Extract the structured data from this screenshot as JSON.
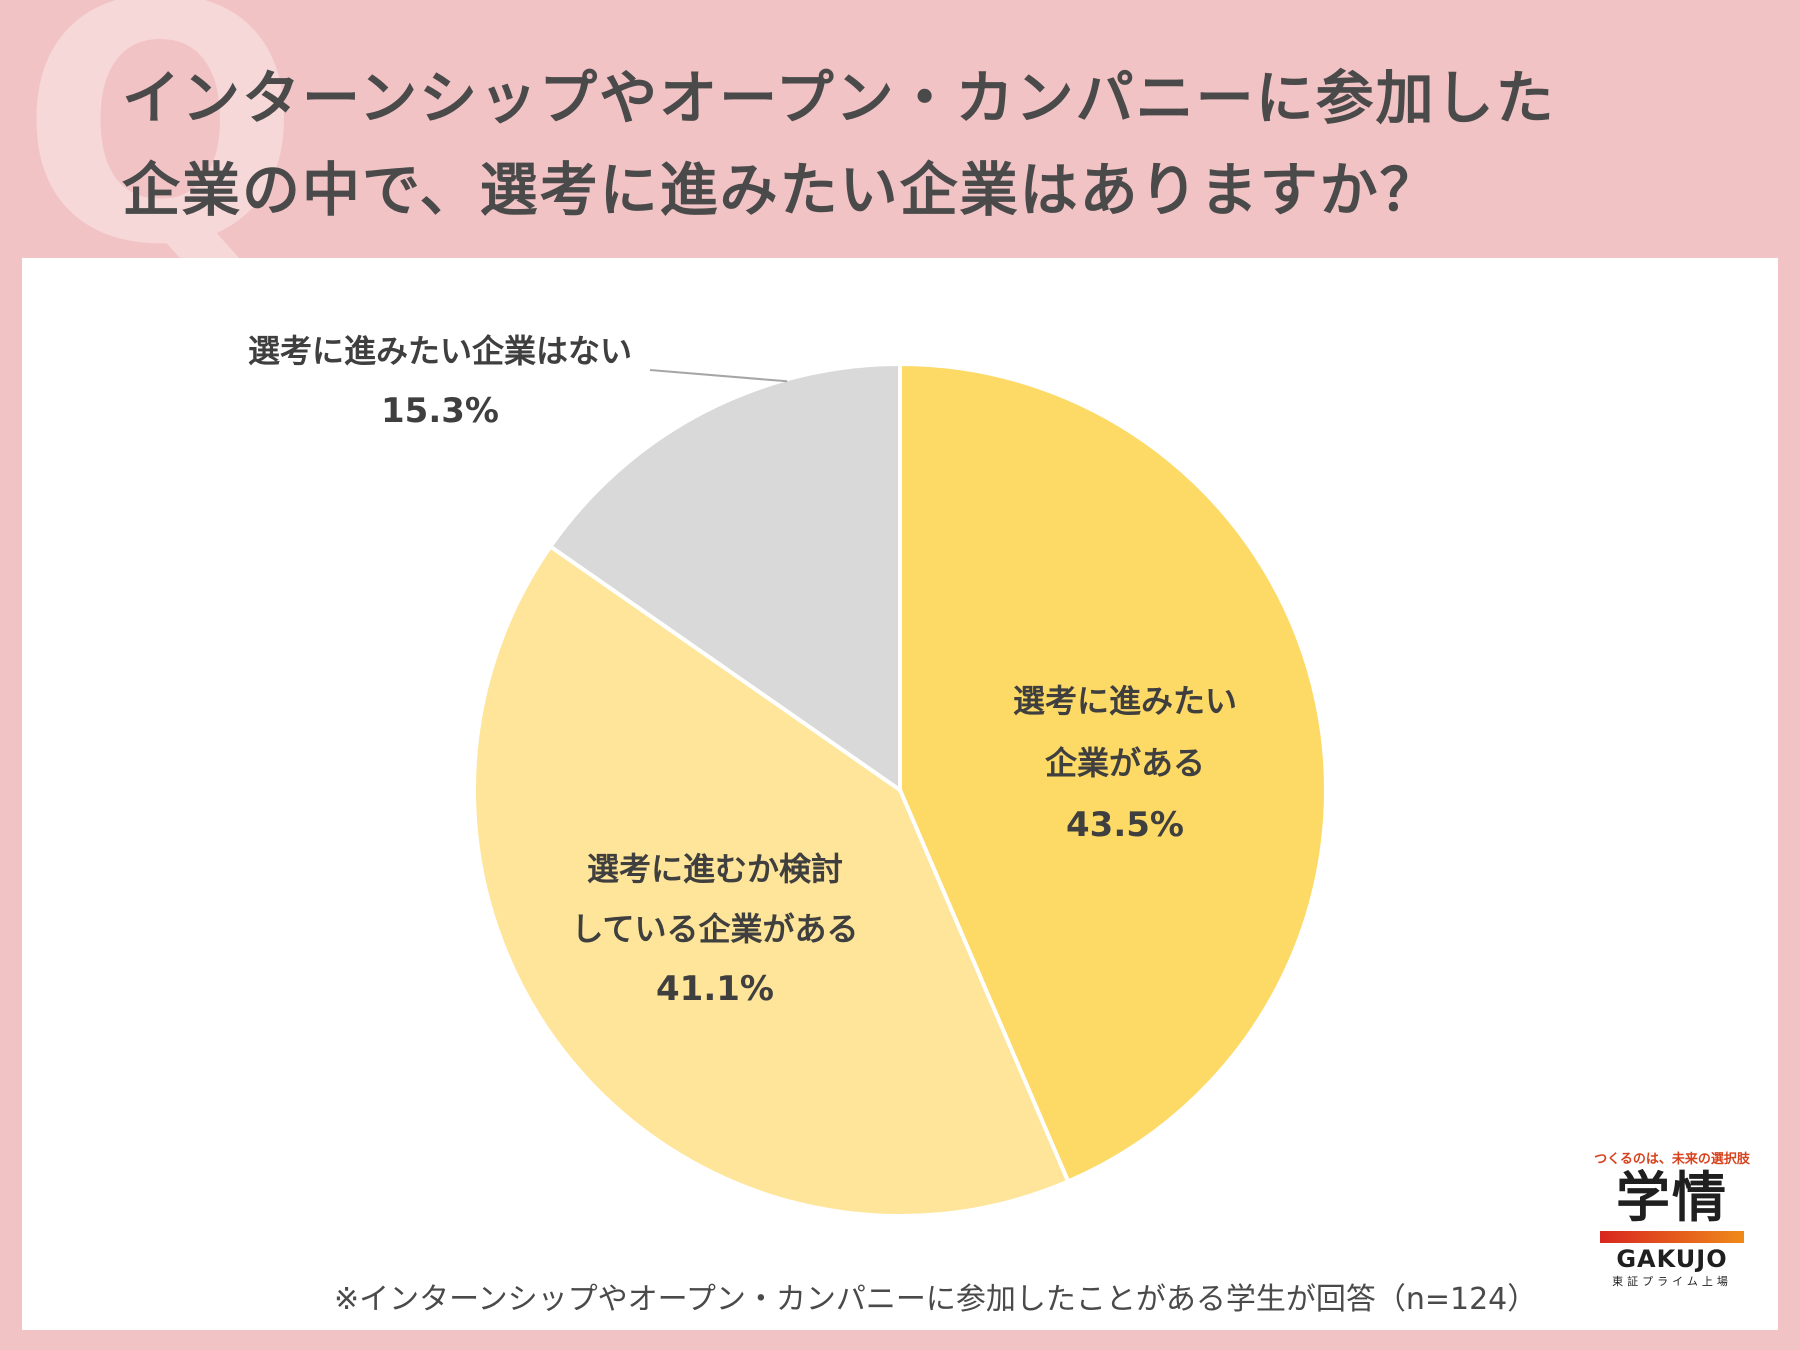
{
  "question": {
    "mark": "Q",
    "line1": "インターンシップやオープン・カンパニーに参加した",
    "line2": "企業の中で、選考に進みたい企業はありますか？"
  },
  "chart_data": {
    "type": "pie",
    "slices": [
      {
        "label_lines": [
          "選考に進みたい",
          "企業がある"
        ],
        "value": 43.5,
        "value_label": "43.5%",
        "color": "#fdd966"
      },
      {
        "label_lines": [
          "選考に進むか検討",
          "している企業がある"
        ],
        "value": 41.1,
        "value_label": "41.1%",
        "color": "#fee599"
      },
      {
        "label_lines": [
          "選考に進みたい企業はない"
        ],
        "value": 15.3,
        "value_label": "15.3%",
        "color": "#d9d9d9"
      }
    ]
  },
  "note": "※インターンシップやオープン・カンパニーに参加したことがある学生が回答（n=124）",
  "logo": {
    "tagline": "つくるのは、未来の選択肢",
    "kanji": "学情",
    "english": "GAKUJO",
    "sub": "東証プライム上場"
  },
  "colors": {
    "background": "#f1c3c5",
    "panel": "#ffffff",
    "text": "#4a4a4a"
  }
}
